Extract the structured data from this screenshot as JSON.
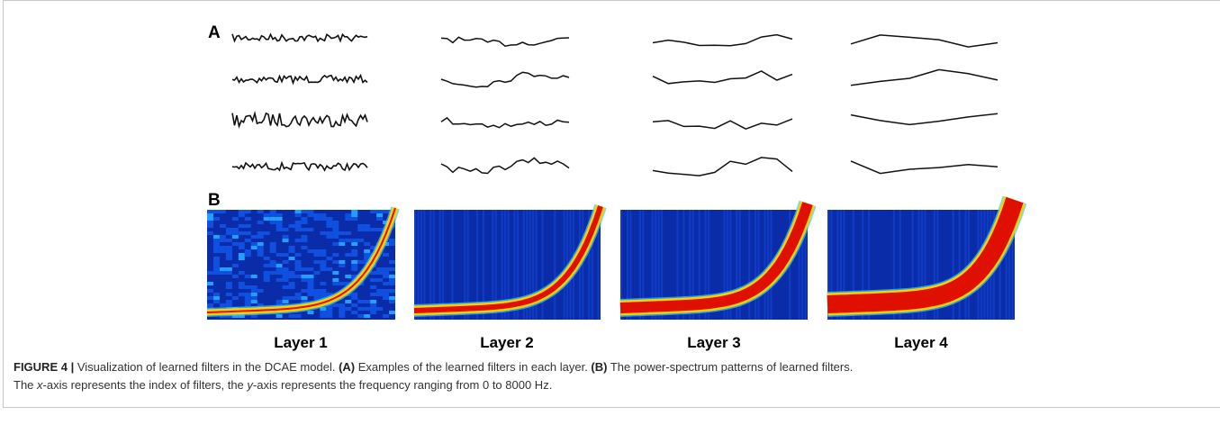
{
  "figure": {
    "panel_labels": [
      "A",
      "B"
    ],
    "layers": [
      "Layer 1",
      "Layer 2",
      "Layer 3",
      "Layer 4"
    ],
    "caption": [
      "FIGURE 4 |",
      " Visualization of learned filters in the DCAE model. ",
      "(A)",
      " Examples of the learned filters in each layer. ",
      "(B)",
      " The power-spectrum patterns of learned filters.",
      "The ",
      "x",
      "-axis represents the index of filters, the ",
      "y",
      "-axis represents the frequency ranging from 0 to 8000 Hz."
    ]
  }
}
